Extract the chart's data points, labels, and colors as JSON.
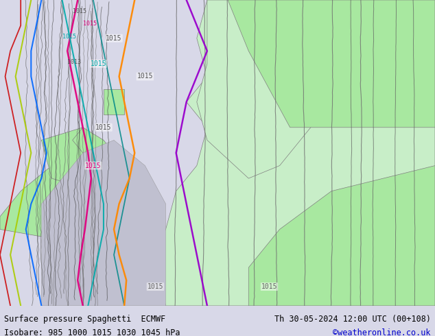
{
  "title_left": "Surface pressure Spaghetti  ECMWF",
  "title_left2": "Isobare: 985 1000 1015 1030 1045 hPa",
  "title_right": "Th 30-05-2024 12:00 UTC (00+108)",
  "title_right2": "©weatheronline.co.uk",
  "bg_color": "#d8d8e8",
  "land_color_light": "#c8eec8",
  "land_color_green": "#a8e8a0",
  "bottom_bar_color": "#ffffff",
  "text_color": "#000000",
  "link_color": "#0000cc",
  "fig_width": 6.34,
  "fig_height": 4.9,
  "dpi": 100
}
